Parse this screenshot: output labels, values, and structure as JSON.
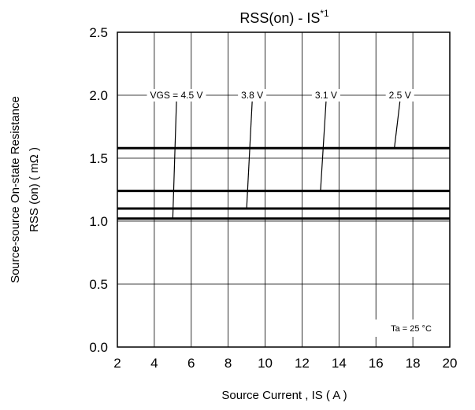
{
  "chart_data": {
    "type": "line",
    "title": "RSS(on) - IS",
    "title_superscript": "*1",
    "xlabel": "Source Current , IS ( A )",
    "ylabel_line1": "Source-source On-state Resistance",
    "ylabel_line2": "RSS (on) ( mΩ )",
    "xlim": [
      2,
      20
    ],
    "ylim": [
      0,
      2.5
    ],
    "x_ticks": [
      "2",
      "4",
      "6",
      "8",
      "10",
      "12",
      "14",
      "16",
      "18",
      "20"
    ],
    "y_ticks": [
      "0.0",
      "0.5",
      "1.0",
      "1.5",
      "2.0",
      "2.5"
    ],
    "grid": true,
    "x": [
      2,
      20
    ],
    "series": [
      {
        "name": "VGS = 4.5 V",
        "values": [
          1.02,
          1.02
        ],
        "label_x": 5.2,
        "leader_end_x": 5.0
      },
      {
        "name": "3.8 V",
        "values": [
          1.1,
          1.1
        ],
        "label_x": 9.3,
        "leader_end_x": 9.0
      },
      {
        "name": "3.1 V",
        "values": [
          1.24,
          1.24
        ],
        "label_x": 13.3,
        "leader_end_x": 13.0
      },
      {
        "name": "2.5 V",
        "values": [
          1.58,
          1.58
        ],
        "label_x": 17.3,
        "leader_end_x": 17.0
      }
    ],
    "series_label_y": 2.0,
    "annotation": "Ta = 25 °C",
    "line_color": "#000000",
    "grid_color": "#000000"
  }
}
